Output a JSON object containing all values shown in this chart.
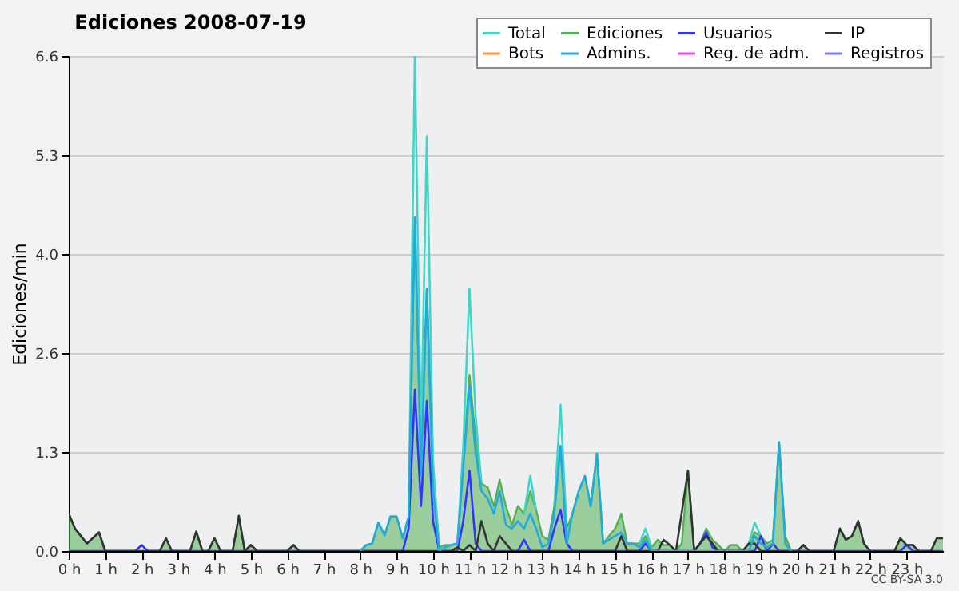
{
  "chart_data": {
    "type": "line",
    "title": "Ediciones  2008-07-19",
    "ylabel": "Ediciones/min",
    "xlim": [
      0,
      24
    ],
    "ylim": [
      0,
      6.6
    ],
    "xticks": [
      {
        "value": 0,
        "label": "0 h"
      },
      {
        "value": 1,
        "label": "1 h"
      },
      {
        "value": 2,
        "label": "2 h"
      },
      {
        "value": 3,
        "label": "3 h"
      },
      {
        "value": 4,
        "label": "4 h"
      },
      {
        "value": 5,
        "label": "5 h"
      },
      {
        "value": 6,
        "label": "6 h"
      },
      {
        "value": 7,
        "label": "7 h"
      },
      {
        "value": 8,
        "label": "8 h"
      },
      {
        "value": 9,
        "label": "9 h"
      },
      {
        "value": 10,
        "label": "10 h"
      },
      {
        "value": 11,
        "label": "11 h"
      },
      {
        "value": 12,
        "label": "12 h"
      },
      {
        "value": 13,
        "label": "13 h"
      },
      {
        "value": 14,
        "label": "14 h"
      },
      {
        "value": 15,
        "label": "15 h"
      },
      {
        "value": 16,
        "label": "16 h"
      },
      {
        "value": 17,
        "label": "17 h"
      },
      {
        "value": 18,
        "label": "18 h"
      },
      {
        "value": 19,
        "label": "19 h"
      },
      {
        "value": 20,
        "label": "20 h"
      },
      {
        "value": 21,
        "label": "21 h"
      },
      {
        "value": 22,
        "label": "22 h"
      },
      {
        "value": 23,
        "label": "23 h"
      }
    ],
    "yticks": [
      {
        "value": 0,
        "label": "0.0"
      },
      {
        "value": 1.32,
        "label": "1.3"
      },
      {
        "value": 2.64,
        "label": "2.6"
      },
      {
        "value": 3.96,
        "label": "4.0"
      },
      {
        "value": 5.28,
        "label": "5.3"
      },
      {
        "value": 6.6,
        "label": "6.6"
      }
    ],
    "grid": "y",
    "legend": "top right",
    "annotations": [
      "CC BY-SA 3.0"
    ],
    "series": [
      {
        "name": "Total",
        "color": "#44d4c4",
        "x": [
          9.33,
          9.5,
          9.67,
          9.83,
          10.0,
          10.17,
          10.4,
          10.67,
          10.83,
          11.0,
          11.17,
          11.33,
          12.0,
          12.5,
          12.67,
          12.83,
          13.1,
          13.33,
          13.5,
          13.67,
          15.0,
          15.67,
          15.83,
          16.0,
          17.0,
          18.67,
          18.83,
          19.0
        ],
        "values": [
          0.46,
          6.6,
          1.5,
          5.53,
          1.2,
          0.05,
          null,
          0.1,
          1.4,
          3.5,
          1.8,
          0.9,
          null,
          0.5,
          1.0,
          0.55,
          null,
          0.6,
          1.95,
          0.3,
          null,
          0.1,
          0.3,
          0.05,
          null,
          0.1,
          0.38,
          0.2
        ]
      },
      {
        "name": "Ediciones",
        "color": "#55b055",
        "type": "area",
        "x": [
          0,
          0.17,
          0.5,
          0.83,
          1.0,
          2.5,
          2.67,
          2.83,
          3.33,
          3.5,
          3.67,
          3.83,
          4.0,
          4.17,
          4.5,
          4.67,
          4.83,
          5.0,
          5.17,
          6.0,
          6.17,
          6.33,
          8.0,
          8.17,
          8.33,
          8.5,
          8.67,
          8.83,
          9.0,
          9.17,
          9.33,
          9.5,
          9.67,
          9.83,
          10.0,
          10.17,
          10.33,
          10.5,
          10.67,
          10.83,
          11.0,
          11.17,
          11.33,
          11.5,
          11.67,
          11.83,
          12.0,
          12.17,
          12.33,
          12.5,
          12.67,
          12.83,
          13.0,
          13.17,
          13.33,
          13.5,
          13.67,
          13.83,
          14.0,
          14.17,
          14.33,
          14.5,
          14.67,
          14.83,
          15.0,
          15.17,
          15.33,
          15.5,
          15.67,
          15.83,
          16.0,
          16.17,
          16.33,
          16.5,
          16.67,
          16.83,
          17.0,
          17.17,
          17.33,
          17.5,
          17.67,
          17.83,
          18.0,
          18.17,
          18.33,
          18.5,
          18.67,
          18.83,
          19.0,
          19.17,
          19.33,
          19.5,
          19.67,
          19.83,
          20.0,
          20.17,
          20.33,
          21.0,
          21.17,
          21.33,
          21.5,
          21.67,
          21.83,
          22.0,
          22.67,
          22.83,
          23.0,
          23.17,
          23.33,
          23.67,
          23.83,
          24
        ],
        "values": [
          0.5,
          0.3,
          0.1,
          0.25,
          0,
          0,
          0.17,
          0,
          0,
          0.26,
          0,
          0,
          0.17,
          0,
          0,
          0.47,
          0,
          0.08,
          0,
          0,
          0.08,
          0,
          0,
          0.08,
          0.1,
          0.38,
          0.21,
          0.46,
          0.46,
          0.17,
          0.46,
          4.45,
          1.2,
          3.5,
          1.0,
          0.05,
          0.08,
          0.08,
          0.1,
          1.2,
          2.35,
          1.5,
          0.9,
          0.85,
          0.6,
          0.95,
          0.6,
          0.35,
          0.6,
          0.5,
          0.8,
          0.55,
          0.2,
          0.15,
          0.6,
          1.4,
          0.3,
          0.5,
          0.8,
          1.0,
          0.6,
          1.3,
          0.1,
          0.2,
          0.3,
          0.5,
          0.1,
          0.1,
          0.1,
          0.2,
          0.05,
          0.15,
          0.08,
          0.08,
          0,
          0.1,
          1.07,
          0,
          0.1,
          0.3,
          0.15,
          0.08,
          0,
          0.08,
          0.08,
          0,
          0.1,
          0.25,
          0.2,
          0.1,
          0.15,
          1.45,
          0.2,
          0,
          0,
          0.08,
          0,
          0,
          0.3,
          0.15,
          0.2,
          0.4,
          0.1,
          0,
          0,
          0.17,
          0.08,
          0.08,
          0,
          0,
          0.17,
          0.17
        ]
      },
      {
        "name": "Usuarios",
        "color": "#3333ff",
        "x": [
          0,
          1.83,
          2.0,
          2.17,
          9.17,
          9.33,
          9.5,
          9.67,
          9.83,
          10.0,
          10.17,
          10.67,
          10.83,
          11.0,
          11.17,
          11.33,
          12.33,
          12.5,
          12.67,
          13.17,
          13.33,
          13.5,
          13.67,
          13.83,
          15.67,
          15.83,
          16.0,
          17.17,
          17.33,
          17.5,
          17.67,
          17.83,
          18.83,
          19.0,
          19.17,
          19.33,
          19.5,
          22.83,
          23.0,
          23.17,
          24
        ],
        "values": [
          0,
          0,
          0.08,
          0,
          0,
          0.3,
          2.15,
          0.6,
          2.0,
          0.4,
          0,
          0,
          0.4,
          1.07,
          0.1,
          0,
          0,
          0.15,
          0,
          0,
          0.3,
          0.55,
          0.1,
          0,
          0,
          0.1,
          0,
          0,
          0.1,
          0.25,
          0.05,
          0,
          0,
          0.2,
          0,
          0.1,
          0,
          0,
          0.08,
          0,
          0
        ]
      },
      {
        "name": "IP",
        "color": "#333333",
        "x": [
          0,
          0.17,
          0.5,
          0.83,
          1.0,
          2.5,
          2.67,
          2.83,
          3.33,
          3.5,
          3.67,
          3.83,
          4.0,
          4.17,
          4.5,
          4.67,
          4.83,
          5.0,
          5.17,
          6.0,
          6.17,
          6.33,
          10.5,
          10.67,
          10.83,
          11.0,
          11.17,
          11.33,
          11.5,
          11.67,
          11.83,
          12.0,
          12.17,
          15.0,
          15.17,
          15.33,
          16.17,
          16.33,
          16.5,
          16.67,
          17.0,
          17.17,
          17.33,
          17.5,
          17.67,
          17.83,
          18.5,
          18.67,
          18.83,
          19.0,
          20.0,
          20.17,
          20.33,
          21.0,
          21.17,
          21.33,
          21.5,
          21.67,
          21.83,
          22.0,
          22.67,
          22.83,
          23.0,
          23.17,
          23.33,
          23.67,
          23.83,
          24
        ],
        "values": [
          0.5,
          0.3,
          0.1,
          0.25,
          0,
          0,
          0.17,
          0,
          0,
          0.26,
          0,
          0,
          0.17,
          0,
          0,
          0.47,
          0,
          0.08,
          0,
          0,
          0.08,
          0,
          0,
          0.05,
          0,
          0.08,
          0,
          0.4,
          0.1,
          0,
          0.2,
          0.1,
          0,
          0,
          0.2,
          0,
          0,
          0.15,
          0.08,
          0,
          1.07,
          0,
          0.1,
          0.2,
          0.1,
          0,
          0,
          0.1,
          0.1,
          0,
          0,
          0.08,
          0,
          0,
          0.3,
          0.15,
          0.2,
          0.4,
          0.1,
          0,
          0,
          0.17,
          0.08,
          0.08,
          0,
          0,
          0.17,
          0.17
        ]
      },
      {
        "name": "Bots",
        "color": "#ff9933"
      },
      {
        "name": "Admins.",
        "color": "#22aadd",
        "x": [
          8.0,
          8.17,
          8.33,
          8.5,
          8.67,
          8.83,
          9.0,
          9.17,
          9.33,
          9.5,
          9.67,
          9.83,
          10.0,
          10.17,
          10.33,
          10.5,
          10.67,
          10.83,
          11.0,
          11.17,
          11.33,
          11.5,
          11.67,
          11.83,
          12.0,
          12.17,
          12.33,
          12.5,
          12.67,
          12.83,
          13.0,
          13.17,
          13.33,
          13.5,
          13.67,
          13.83,
          14.0,
          14.17,
          14.33,
          14.5,
          14.67,
          14.83,
          15.0,
          15.17,
          15.33,
          15.5,
          15.67,
          15.83,
          16.0,
          18.67,
          18.83,
          19.0,
          19.17,
          19.33,
          19.5,
          19.67,
          19.83
        ],
        "values": [
          0,
          0.08,
          0.1,
          0.38,
          0.21,
          0.46,
          0.46,
          0.17,
          0.46,
          4.45,
          1.0,
          3.5,
          0.8,
          0,
          0.05,
          0.08,
          0.1,
          1.1,
          2.2,
          1.3,
          0.8,
          0.7,
          0.5,
          0.8,
          0.35,
          0.3,
          0.4,
          0.3,
          0.5,
          0.3,
          0.05,
          0.1,
          0.5,
          1.4,
          0.1,
          0.5,
          0.8,
          1.0,
          0.6,
          1.3,
          0.1,
          0.15,
          0.2,
          0.25,
          0.1,
          0.1,
          0.05,
          0.15,
          0,
          0,
          0.2,
          0.1,
          0.05,
          0.1,
          1.45,
          0.1,
          0
        ]
      },
      {
        "name": "Reg. de adm.",
        "color": "#ee44ee"
      },
      {
        "name": "Registros",
        "color": "#7777ff"
      }
    ]
  }
}
